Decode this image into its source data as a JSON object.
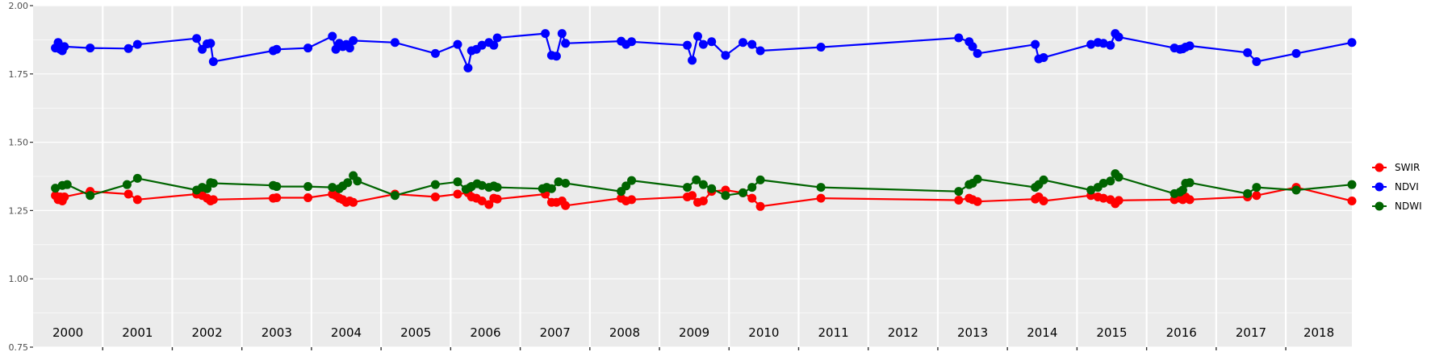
{
  "chart_data": {
    "type": "line",
    "title": "",
    "xlabel": "",
    "ylabel": "",
    "xlim": [
      2000.0,
      2018.95
    ],
    "ylim": [
      0.75,
      2.0
    ],
    "y_ticks": [
      "0.75",
      "1.00",
      "1.25",
      "1.50",
      "1.75",
      "2.00"
    ],
    "year_labels": [
      "2000",
      "2001",
      "2002",
      "2003",
      "2004",
      "2005",
      "2006",
      "2007",
      "2008",
      "2009",
      "2010",
      "2011",
      "2012",
      "2013",
      "2014",
      "2015",
      "2016",
      "2017",
      "2018"
    ],
    "grid": true,
    "legend_position": "right",
    "series": [
      {
        "name": "SWIR",
        "color": "#ff0000",
        "x": [
          2000.32,
          2000.36,
          2000.39,
          2000.42,
          2000.45,
          2000.82,
          2001.37,
          2001.5,
          2002.35,
          2002.43,
          2002.5,
          2002.55,
          2002.59,
          2003.45,
          2003.5,
          2003.95,
          2004.3,
          2004.35,
          2004.4,
          2004.45,
          2004.5,
          2004.55,
          2004.6,
          2005.2,
          2005.78,
          2006.1,
          2006.25,
          2006.3,
          2006.37,
          2006.45,
          2006.55,
          2006.62,
          2006.67,
          2007.36,
          2007.45,
          2007.52,
          2007.6,
          2007.65,
          2008.45,
          2008.52,
          2008.6,
          2009.4,
          2009.47,
          2009.55,
          2009.63,
          2009.75,
          2009.95,
          2010.2,
          2010.33,
          2010.45,
          2011.32,
          2013.3,
          2013.45,
          2013.5,
          2013.57,
          2014.4,
          2014.45,
          2014.52,
          2015.2,
          2015.3,
          2015.38,
          2015.48,
          2015.55,
          2015.6,
          2016.4,
          2016.48,
          2016.52,
          2016.56,
          2016.62,
          2017.45,
          2017.58,
          2018.15,
          2018.95
        ],
        "y": [
          1.305,
          1.29,
          1.3,
          1.285,
          1.3,
          1.32,
          1.31,
          1.29,
          1.31,
          1.305,
          1.295,
          1.285,
          1.29,
          1.295,
          1.297,
          1.297,
          1.31,
          1.305,
          1.295,
          1.29,
          1.28,
          1.285,
          1.28,
          1.31,
          1.3,
          1.31,
          1.315,
          1.3,
          1.295,
          1.285,
          1.272,
          1.295,
          1.292,
          1.31,
          1.28,
          1.28,
          1.285,
          1.268,
          1.295,
          1.285,
          1.29,
          1.3,
          1.305,
          1.28,
          1.285,
          1.32,
          1.325,
          1.315,
          1.295,
          1.265,
          1.295,
          1.288,
          1.295,
          1.29,
          1.283,
          1.292,
          1.3,
          1.285,
          1.305,
          1.3,
          1.295,
          1.29,
          1.275,
          1.287,
          1.29,
          1.295,
          1.29,
          1.3,
          1.29,
          1.3,
          1.305,
          1.335,
          1.285
        ]
      },
      {
        "name": "NDVI",
        "color": "#0000ff",
        "x": [
          2000.32,
          2000.36,
          2000.39,
          2000.42,
          2000.45,
          2000.82,
          2001.37,
          2001.5,
          2002.35,
          2002.43,
          2002.5,
          2002.55,
          2002.59,
          2003.45,
          2003.5,
          2003.95,
          2004.3,
          2004.35,
          2004.4,
          2004.45,
          2004.5,
          2004.55,
          2004.6,
          2005.2,
          2005.78,
          2006.1,
          2006.25,
          2006.3,
          2006.37,
          2006.45,
          2006.55,
          2006.62,
          2006.67,
          2007.36,
          2007.45,
          2007.52,
          2007.6,
          2007.65,
          2008.45,
          2008.52,
          2008.6,
          2009.4,
          2009.47,
          2009.55,
          2009.63,
          2009.75,
          2009.95,
          2010.2,
          2010.33,
          2010.45,
          2011.32,
          2013.3,
          2013.45,
          2013.5,
          2013.57,
          2014.4,
          2014.45,
          2014.52,
          2015.2,
          2015.3,
          2015.38,
          2015.48,
          2015.55,
          2015.6,
          2016.4,
          2016.48,
          2016.52,
          2016.56,
          2016.62,
          2017.45,
          2017.58,
          2018.15,
          2018.95
        ],
        "y": [
          1.845,
          1.865,
          1.84,
          1.835,
          1.85,
          1.845,
          1.843,
          1.858,
          1.88,
          1.84,
          1.86,
          1.862,
          1.795,
          1.835,
          1.84,
          1.845,
          1.888,
          1.84,
          1.862,
          1.85,
          1.858,
          1.845,
          1.872,
          1.865,
          1.825,
          1.858,
          1.772,
          1.835,
          1.84,
          1.855,
          1.865,
          1.855,
          1.882,
          1.898,
          1.818,
          1.815,
          1.898,
          1.862,
          1.87,
          1.858,
          1.868,
          1.855,
          1.8,
          1.888,
          1.858,
          1.868,
          1.818,
          1.865,
          1.858,
          1.835,
          1.848,
          1.882,
          1.868,
          1.85,
          1.825,
          1.858,
          1.805,
          1.81,
          1.858,
          1.865,
          1.862,
          1.855,
          1.898,
          1.885,
          1.845,
          1.84,
          1.842,
          1.848,
          1.853,
          1.828,
          1.795,
          1.825,
          1.865
        ]
      },
      {
        "name": "NDWI",
        "color": "#006400",
        "x": [
          2000.32,
          2000.42,
          2000.49,
          2000.82,
          2001.35,
          2001.5,
          2002.35,
          2002.43,
          2002.5,
          2002.55,
          2002.59,
          2003.45,
          2003.5,
          2003.95,
          2004.3,
          2004.4,
          2004.45,
          2004.52,
          2004.6,
          2004.66,
          2005.2,
          2005.78,
          2006.1,
          2006.22,
          2006.28,
          2006.3,
          2006.38,
          2006.45,
          2006.55,
          2006.62,
          2006.67,
          2007.32,
          2007.38,
          2007.45,
          2007.55,
          2007.65,
          2008.45,
          2008.52,
          2008.6,
          2009.4,
          2009.53,
          2009.63,
          2009.75,
          2009.95,
          2010.2,
          2010.33,
          2010.45,
          2011.32,
          2013.3,
          2013.45,
          2013.5,
          2013.57,
          2014.4,
          2014.45,
          2014.52,
          2015.2,
          2015.3,
          2015.38,
          2015.48,
          2015.55,
          2015.6,
          2016.4,
          2016.48,
          2016.52,
          2016.56,
          2016.62,
          2017.45,
          2017.58,
          2018.15,
          2018.95
        ],
        "y": [
          1.332,
          1.342,
          1.345,
          1.305,
          1.345,
          1.368,
          1.325,
          1.335,
          1.33,
          1.352,
          1.35,
          1.342,
          1.338,
          1.338,
          1.335,
          1.33,
          1.34,
          1.352,
          1.378,
          1.358,
          1.305,
          1.345,
          1.355,
          1.328,
          1.335,
          1.338,
          1.348,
          1.342,
          1.335,
          1.34,
          1.335,
          1.33,
          1.335,
          1.33,
          1.355,
          1.35,
          1.32,
          1.34,
          1.36,
          1.335,
          1.362,
          1.345,
          1.33,
          1.305,
          1.315,
          1.335,
          1.362,
          1.335,
          1.32,
          1.345,
          1.35,
          1.365,
          1.335,
          1.345,
          1.362,
          1.325,
          1.335,
          1.35,
          1.358,
          1.385,
          1.372,
          1.312,
          1.318,
          1.325,
          1.35,
          1.352,
          1.312,
          1.335,
          1.325,
          1.345
        ]
      }
    ]
  }
}
